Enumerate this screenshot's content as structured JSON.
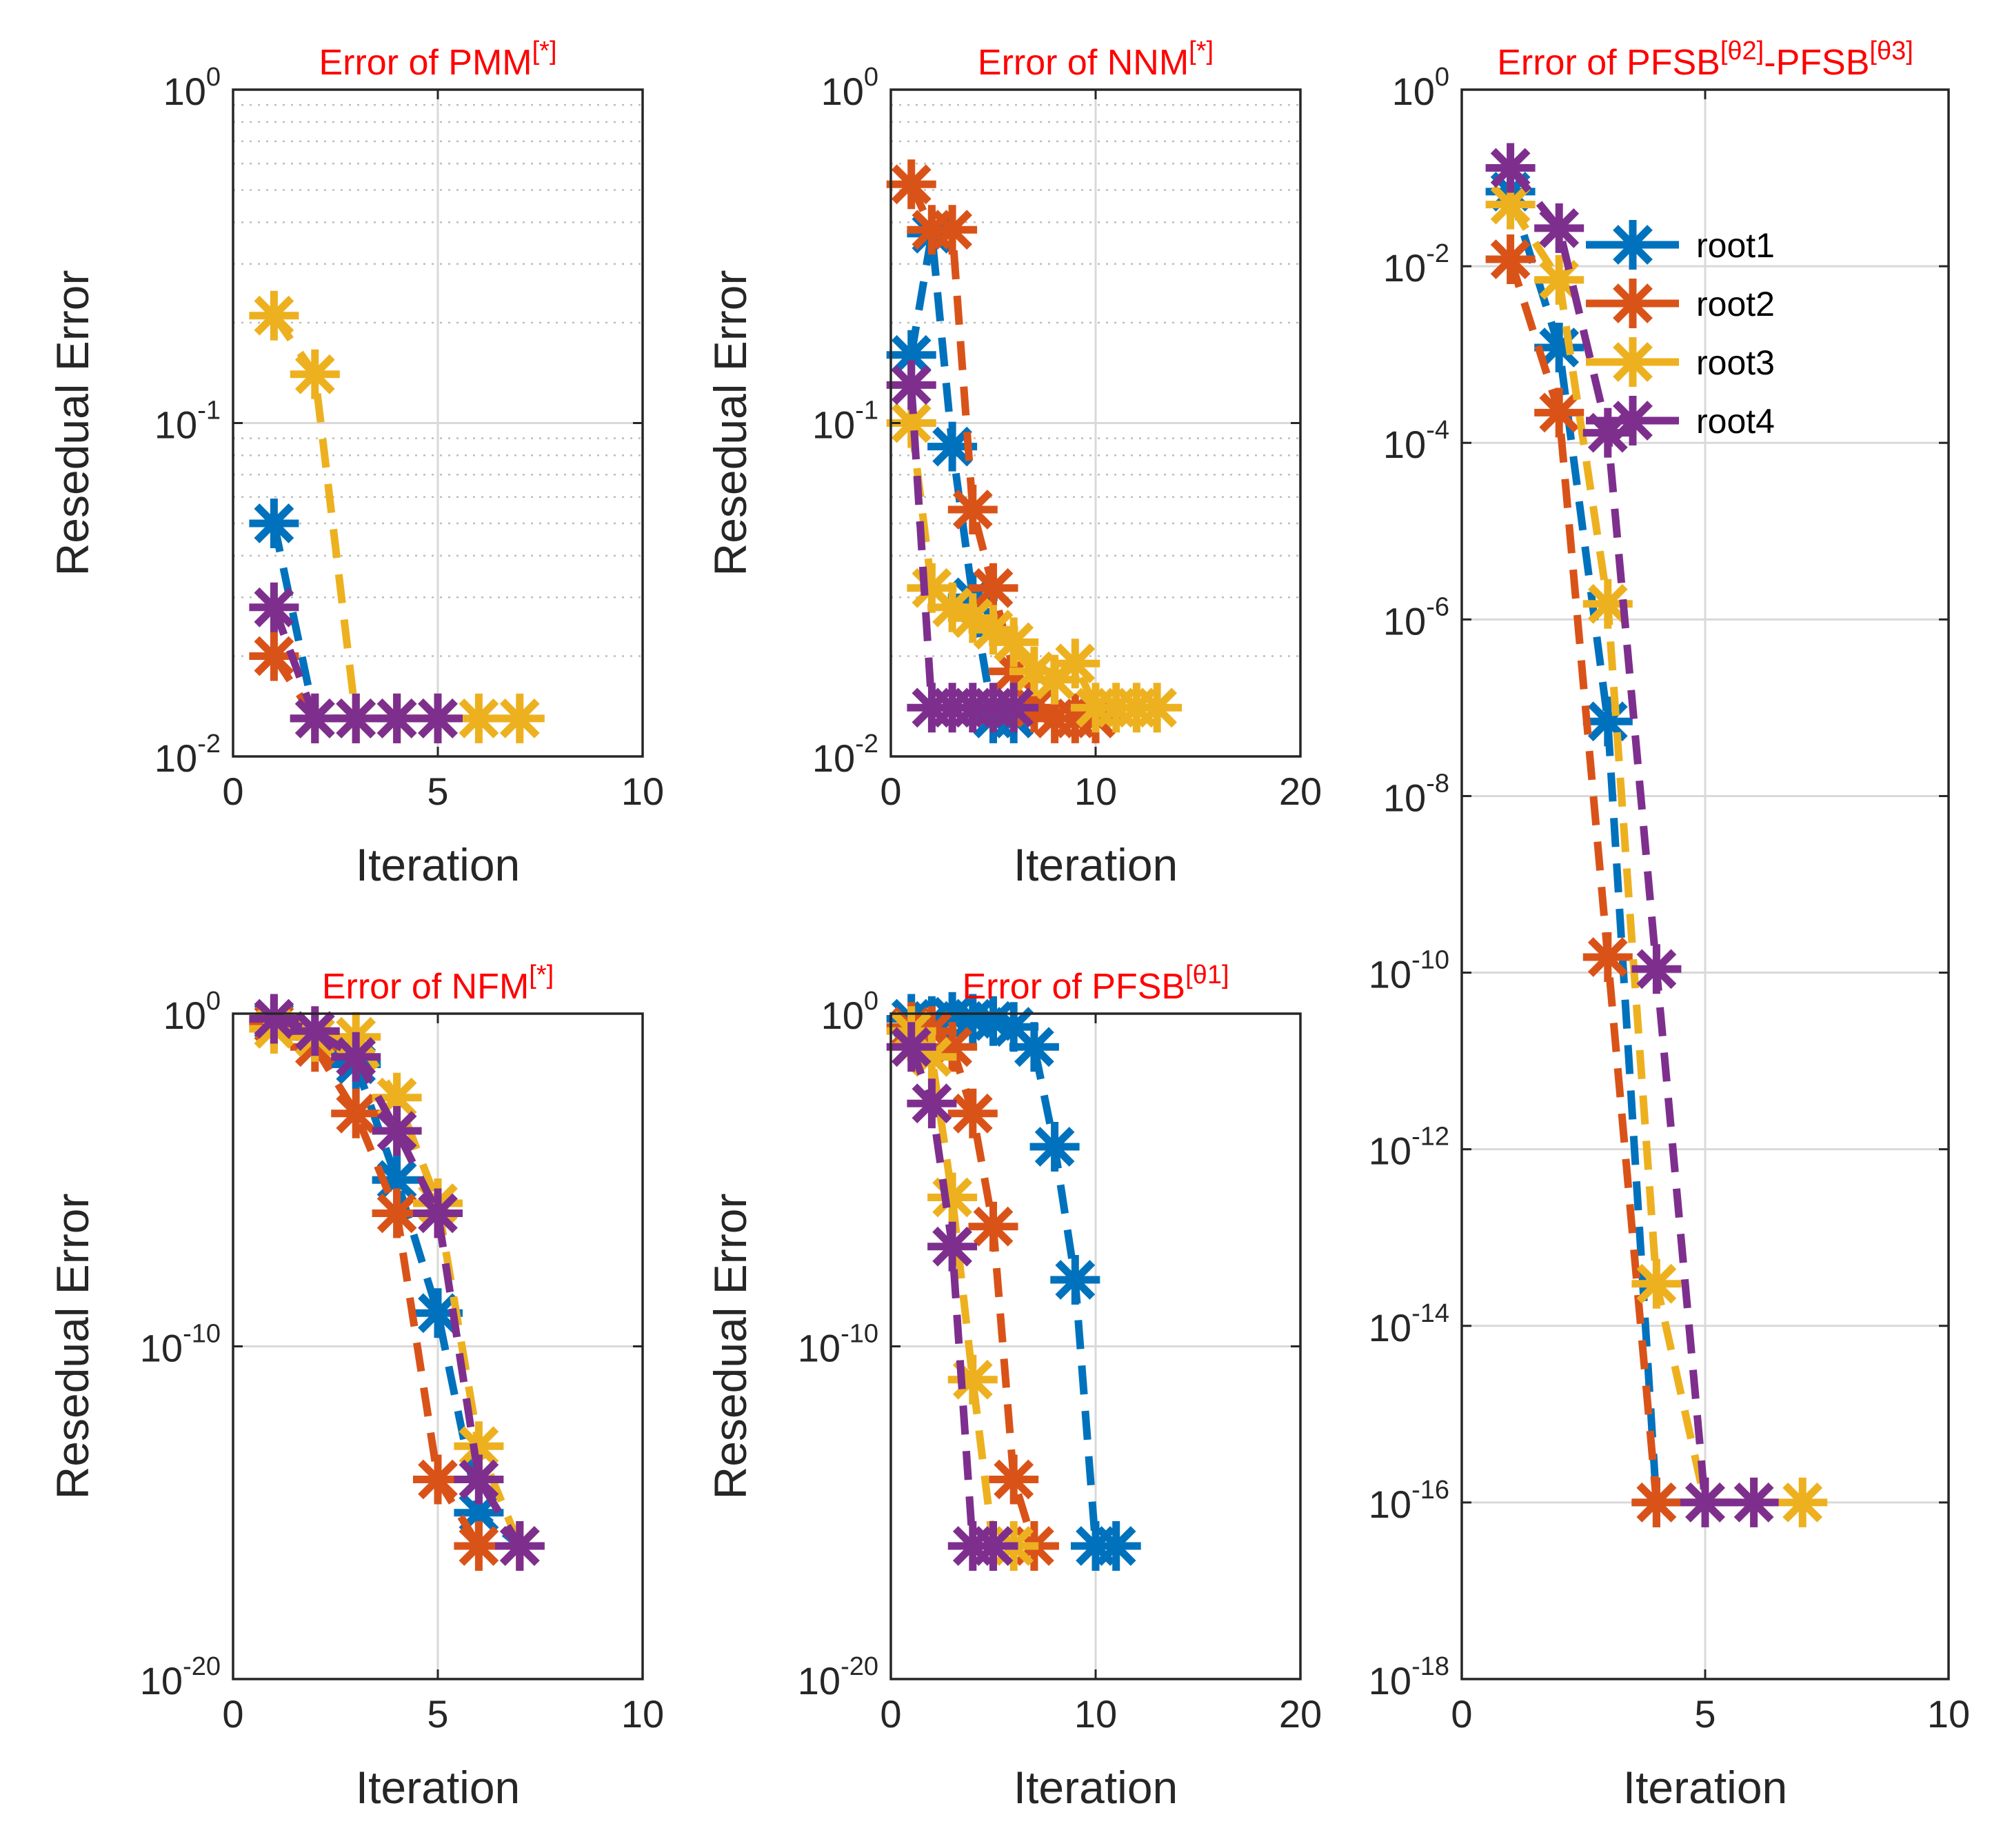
{
  "colors": {
    "root1": "#0072bd",
    "root2": "#d95319",
    "root3": "#edb120",
    "root4": "#7e2f8e",
    "title": "#ff0000",
    "grid": "#d9d9d9",
    "axis": "#262626"
  },
  "legend": {
    "placement": "top-right",
    "entries": [
      "root1",
      "root2",
      "root3",
      "root4"
    ]
  },
  "chart_data": [
    {
      "id": "pmm",
      "type": "line",
      "title": "Error of PMM",
      "title_sup": "[*]",
      "xlabel": "Iteration",
      "ylabel": "Resedual Error",
      "xlim": [
        0,
        10
      ],
      "xticks": [
        0,
        5,
        10
      ],
      "ylog": true,
      "ylim_exp": [
        -2,
        0
      ],
      "yticks_exp": [
        -2,
        -1,
        0
      ],
      "minor_grid": true,
      "series": [
        {
          "name": "root1",
          "x": [
            1,
            2,
            3,
            4,
            5
          ],
          "y": [
            0.05,
            0.013,
            0.013,
            0.013,
            0.013
          ]
        },
        {
          "name": "root2",
          "x": [
            1,
            2,
            3,
            4,
            5
          ],
          "y": [
            0.02,
            0.013,
            0.013,
            0.013,
            0.013
          ]
        },
        {
          "name": "root3",
          "x": [
            1,
            2,
            3,
            4,
            5,
            6,
            7
          ],
          "y": [
            0.21,
            0.14,
            0.013,
            0.013,
            0.013,
            0.013,
            0.013
          ]
        },
        {
          "name": "root4",
          "x": [
            1,
            2,
            3,
            4,
            5
          ],
          "y": [
            0.028,
            0.013,
            0.013,
            0.013,
            0.013
          ]
        }
      ]
    },
    {
      "id": "nnm",
      "type": "line",
      "title": "Error of NNM",
      "title_sup": "[*]",
      "xlabel": "Iteration",
      "ylabel": "Resedual Error",
      "xlim": [
        0,
        20
      ],
      "xticks": [
        0,
        10,
        20
      ],
      "ylog": true,
      "ylim_exp": [
        -2,
        0
      ],
      "yticks_exp": [
        -2,
        -1,
        0
      ],
      "minor_grid": true,
      "series": [
        {
          "name": "root1",
          "x": [
            1,
            2,
            3,
            4,
            5,
            6
          ],
          "y": [
            0.16,
            0.37,
            0.085,
            0.03,
            0.013,
            0.013
          ]
        },
        {
          "name": "root2",
          "x": [
            1,
            2,
            3,
            4,
            5,
            6,
            7,
            8,
            9,
            10
          ],
          "y": [
            0.52,
            0.38,
            0.38,
            0.055,
            0.032,
            0.018,
            0.014,
            0.013,
            0.013,
            0.013
          ]
        },
        {
          "name": "root3",
          "x": [
            1,
            2,
            3,
            4,
            5,
            6,
            7,
            8,
            9,
            10,
            11,
            12,
            13
          ],
          "y": [
            0.1,
            0.032,
            0.028,
            0.026,
            0.024,
            0.022,
            0.018,
            0.017,
            0.019,
            0.014,
            0.014,
            0.014,
            0.014
          ]
        },
        {
          "name": "root4",
          "x": [
            1,
            2,
            3,
            4,
            5,
            6
          ],
          "y": [
            0.13,
            0.014,
            0.014,
            0.014,
            0.014,
            0.014
          ]
        }
      ]
    },
    {
      "id": "pfsb23",
      "type": "line",
      "title": "Error of PFSB",
      "title_sup": "[θ2]",
      "title_mid": "-PFSB",
      "title_sup2": "[θ3]",
      "xlabel": "Iteration",
      "ylabel": "",
      "xlim": [
        0,
        10
      ],
      "xticks": [
        0,
        5,
        10
      ],
      "ylog": true,
      "ylim_exp": [
        -18,
        0
      ],
      "yticks_exp": [
        -18,
        -16,
        -14,
        -12,
        -10,
        -8,
        -6,
        -4,
        -2,
        0
      ],
      "minor_grid": false,
      "show_legend": true,
      "series": [
        {
          "name": "root1",
          "x": [
            1,
            2,
            3,
            4,
            5
          ],
          "y": [
            0.07,
            0.0012,
            7e-08,
            1e-16,
            1e-16
          ]
        },
        {
          "name": "root2",
          "x": [
            1,
            2,
            3,
            4,
            5
          ],
          "y": [
            0.012,
            0.00022,
            1.5e-10,
            1e-16,
            1e-16
          ]
        },
        {
          "name": "root3",
          "x": [
            1,
            2,
            3,
            4,
            5,
            6,
            7
          ],
          "y": [
            0.05,
            0.007,
            1.5e-06,
            3e-14,
            1e-16,
            1e-16,
            1e-16
          ]
        },
        {
          "name": "root4",
          "x": [
            1,
            2,
            3,
            4,
            5,
            6
          ],
          "y": [
            0.13,
            0.027,
            0.00013,
            1.1e-10,
            1e-16,
            1e-16
          ]
        }
      ]
    },
    {
      "id": "nfm",
      "type": "line",
      "title": "Error of NFM",
      "title_sup": "[*]",
      "xlabel": "Iteration",
      "ylabel": "Resedual Error",
      "xlim": [
        0,
        10
      ],
      "xticks": [
        0,
        5,
        10
      ],
      "ylog": true,
      "ylim_exp": [
        -20,
        0
      ],
      "yticks_exp": [
        -20,
        -10,
        0
      ],
      "minor_grid": false,
      "series": [
        {
          "name": "root1",
          "x": [
            1,
            2,
            3,
            4,
            5,
            6,
            7
          ],
          "y": [
            0.6,
            0.2,
            0.03,
            1e-05,
            1e-09,
            1e-15,
            1e-16
          ]
        },
        {
          "name": "root2",
          "x": [
            1,
            2,
            3,
            4,
            5,
            6,
            7
          ],
          "y": [
            0.5,
            0.1,
            0.001,
            1e-06,
            1e-14,
            1e-16,
            1e-16
          ]
        },
        {
          "name": "root3",
          "x": [
            1,
            2,
            3,
            4,
            5,
            6,
            7
          ],
          "y": [
            0.35,
            0.2,
            0.2,
            0.003,
            2e-06,
            1e-13,
            1e-16
          ]
        },
        {
          "name": "root4",
          "x": [
            1,
            2,
            3,
            4,
            5,
            6,
            7
          ],
          "y": [
            0.7,
            0.3,
            0.05,
            0.0003,
            1e-06,
            1e-14,
            1e-16
          ]
        }
      ]
    },
    {
      "id": "pfsb1",
      "type": "line",
      "title": "Error of PFSB",
      "title_sup": "[θ1]",
      "xlabel": "Iteration",
      "ylabel": "Resedual Error",
      "xlim": [
        0,
        20
      ],
      "xticks": [
        0,
        10,
        20
      ],
      "ylog": true,
      "ylim_exp": [
        -20,
        0
      ],
      "yticks_exp": [
        -20,
        -10,
        0
      ],
      "minor_grid": false,
      "series": [
        {
          "name": "root1",
          "x": [
            1,
            2,
            3,
            4,
            5,
            6,
            7,
            8,
            9,
            10,
            11
          ],
          "y": [
            0.7,
            0.6,
            0.8,
            0.7,
            0.6,
            0.4,
            0.1,
            0.0001,
            1e-08,
            1e-16,
            1e-16
          ]
        },
        {
          "name": "root2",
          "x": [
            1,
            2,
            3,
            4,
            5,
            6,
            7
          ],
          "y": [
            0.4,
            0.3,
            0.1,
            0.001,
            4e-07,
            1e-14,
            1e-16
          ]
        },
        {
          "name": "root3",
          "x": [
            1,
            2,
            3,
            4,
            5,
            6
          ],
          "y": [
            0.3,
            0.05,
            3e-06,
            1e-11,
            1e-16,
            1e-16
          ]
        },
        {
          "name": "root4",
          "x": [
            1,
            2,
            3,
            4,
            5
          ],
          "y": [
            0.1,
            0.002,
            1e-07,
            1e-16,
            1e-16
          ]
        }
      ]
    }
  ]
}
